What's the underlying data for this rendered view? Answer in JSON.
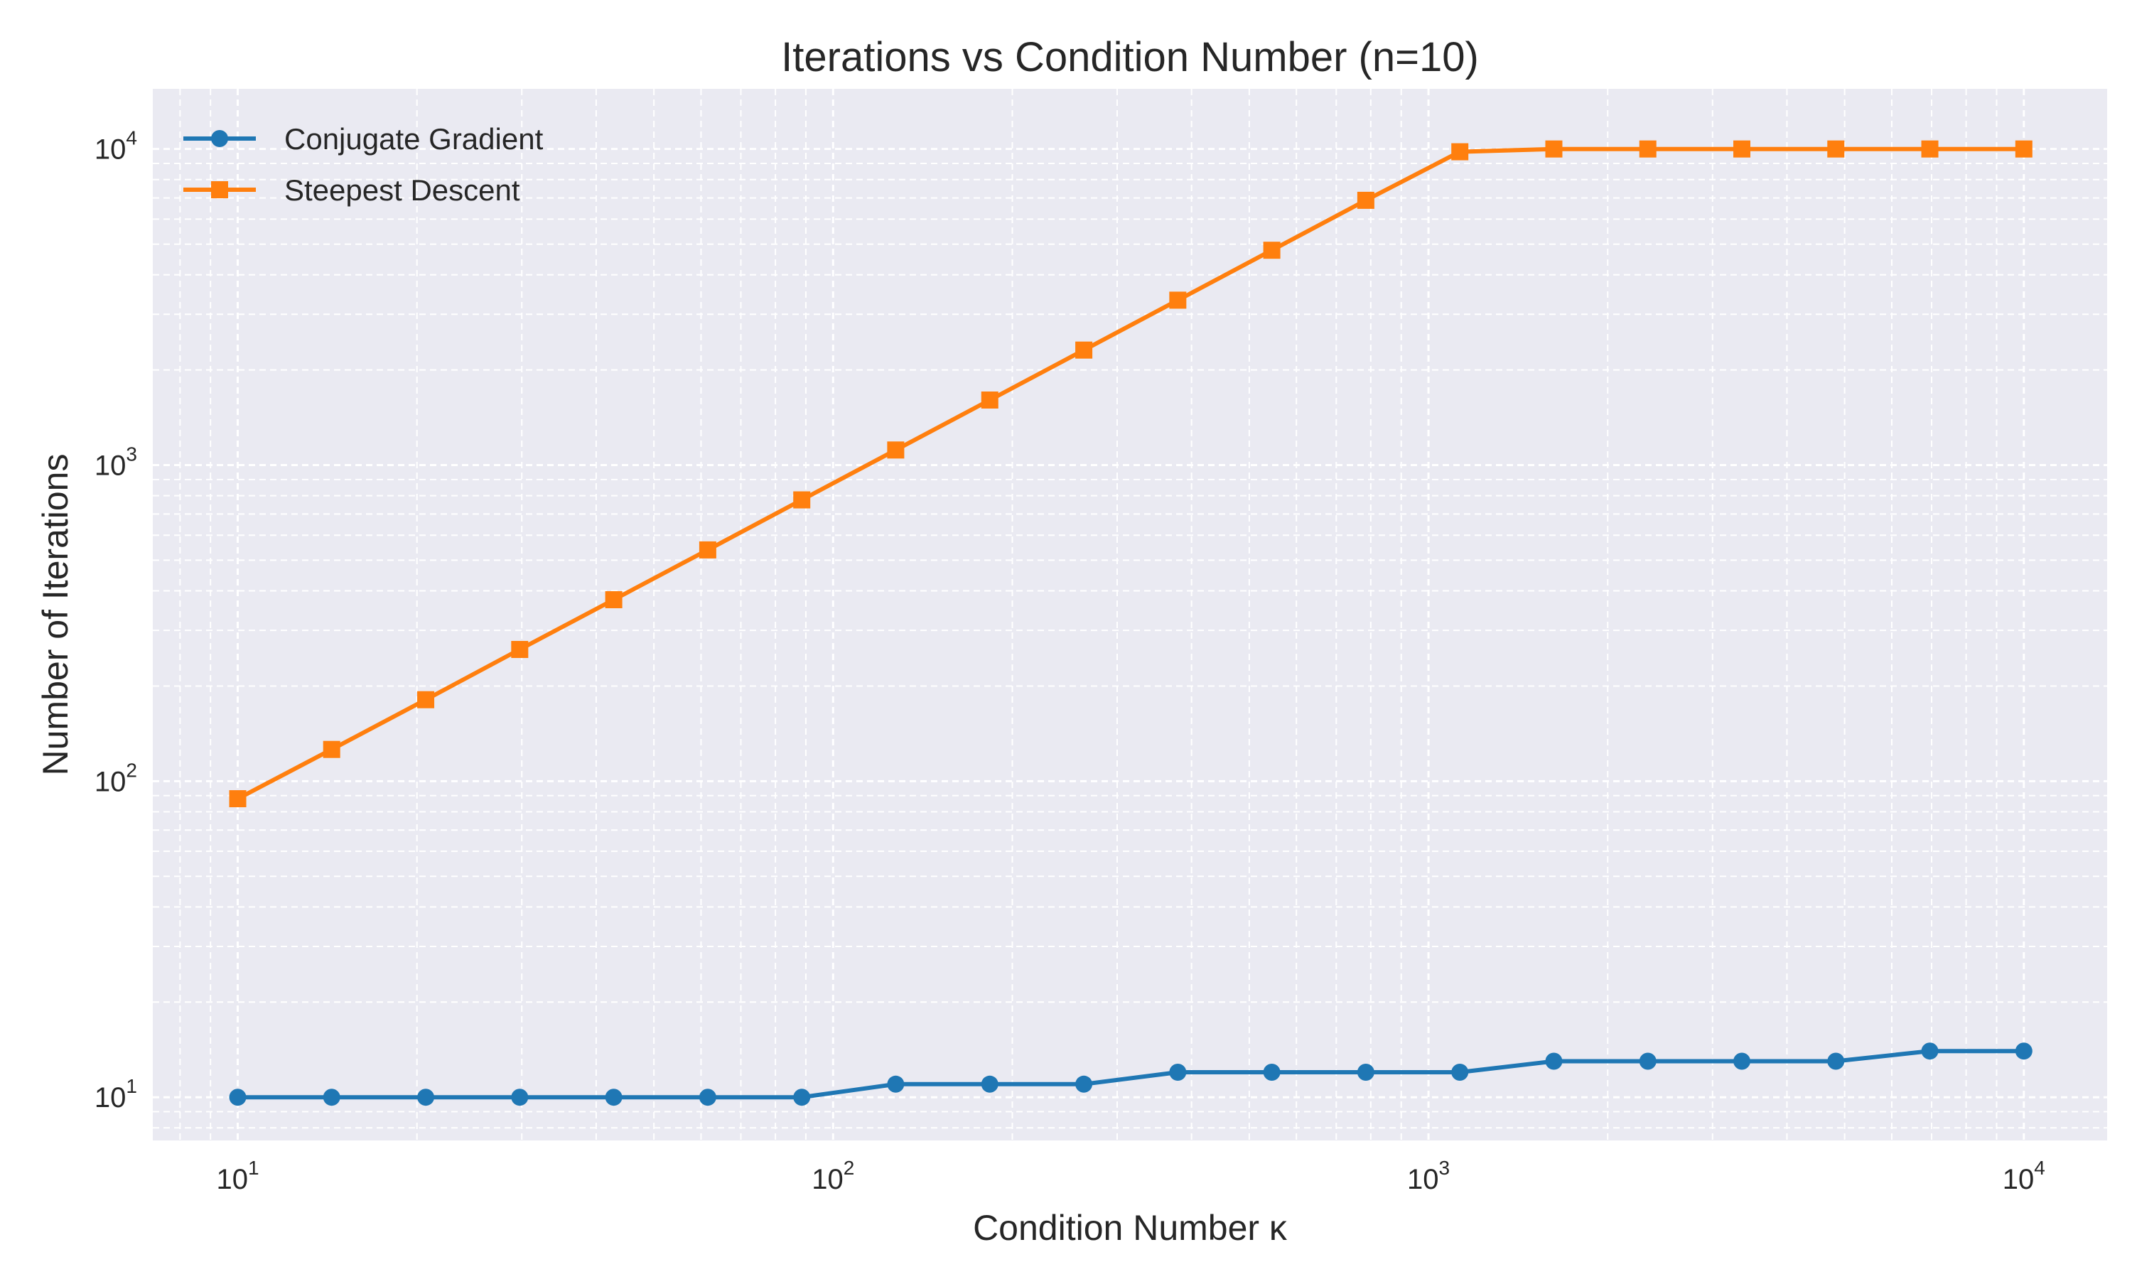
{
  "chart_data": {
    "type": "line",
    "title": "Iterations vs Condition Number (n=10)",
    "xlabel": "Condition Number κ",
    "ylabel": "Number of Iterations",
    "xscale": "log",
    "yscale": "log",
    "xlim": [
      7.2,
      13800
    ],
    "ylim": [
      7.3,
      15500
    ],
    "grid": true,
    "grid_style": "dashed",
    "background": "#eaeaf2",
    "legend_position": "top-left",
    "x_ticks": [
      {
        "value": 10,
        "base": "10",
        "exp": "1"
      },
      {
        "value": 100,
        "base": "10",
        "exp": "2"
      },
      {
        "value": 1000,
        "base": "10",
        "exp": "3"
      },
      {
        "value": 10000,
        "base": "10",
        "exp": "4"
      }
    ],
    "y_ticks": [
      {
        "value": 10,
        "base": "10",
        "exp": "1"
      },
      {
        "value": 100,
        "base": "10",
        "exp": "2"
      },
      {
        "value": 1000,
        "base": "10",
        "exp": "3"
      },
      {
        "value": 10000,
        "base": "10",
        "exp": "4"
      }
    ],
    "x": [
      10,
      14.38,
      20.69,
      29.76,
      42.81,
      61.58,
      88.59,
      127.4,
      183.3,
      263.7,
      379.3,
      545.6,
      784.8,
      1129,
      1624,
      2336,
      3360,
      4833,
      6952,
      10000
    ],
    "series": [
      {
        "name": "Conjugate Gradient",
        "color": "#1f77b4",
        "marker": "circle",
        "values": [
          10,
          10,
          10,
          10,
          10,
          10,
          10,
          11,
          11,
          11,
          12,
          12,
          12,
          12,
          13,
          13,
          13,
          13,
          14,
          14
        ]
      },
      {
        "name": "Steepest Descent",
        "color": "#ff7f0e",
        "marker": "square",
        "values": [
          88,
          126,
          181,
          261,
          375,
          539,
          776,
          1116,
          1606,
          2311,
          3324,
          4782,
          6880,
          9800,
          10000,
          10000,
          10000,
          10000,
          10000,
          10000
        ]
      }
    ]
  }
}
